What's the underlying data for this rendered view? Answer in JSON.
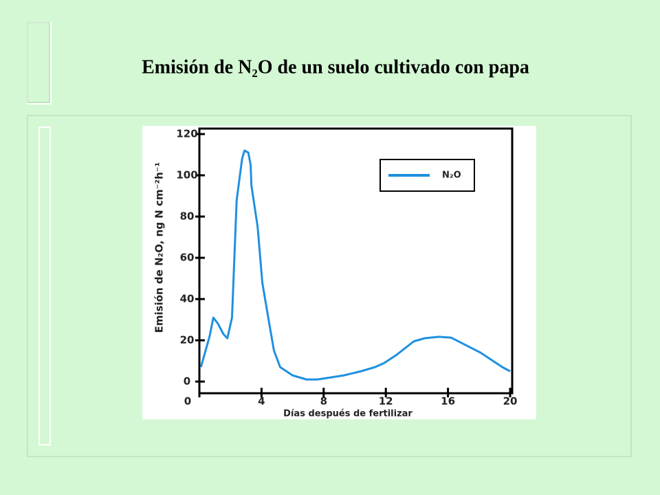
{
  "chart_data": {
    "type": "line",
    "title": "Emisión de N₂O de un suelo cultivado con papa",
    "xlabel": "Días después de fertilizar",
    "ylabel": "Emisión de N₂O, ng N cm⁻²h⁻¹",
    "x": [
      0.1,
      0.66,
      0.9,
      1.2,
      1.55,
      1.8,
      2.1,
      2.4,
      2.75,
      2.9,
      3.15,
      3.3,
      3.35,
      3.75,
      4.05,
      4.5,
      4.8,
      5.2,
      6.0,
      6.9,
      7.6,
      9.3,
      10.4,
      11.3,
      11.9,
      12.7,
      13.8,
      14.5,
      15.4,
      16.2,
      18.1,
      19.5,
      20
    ],
    "series": [
      {
        "name": "N₂O",
        "color": "#1e90e0",
        "values": [
          7,
          22,
          31,
          28,
          23,
          21,
          31,
          88,
          108,
          112,
          111,
          105,
          95,
          75,
          48,
          28,
          15,
          7,
          3,
          1,
          1,
          3,
          5,
          7,
          9,
          13,
          19.5,
          21,
          21.7,
          21.3,
          14,
          7,
          5
        ]
      }
    ],
    "xlim": [
      0,
      20
    ],
    "xticks": [
      0,
      4,
      8,
      12,
      16,
      20
    ],
    "ylim": [
      0,
      120
    ],
    "yticks": [
      0,
      20,
      40,
      60,
      80,
      100,
      120
    ],
    "legend": "upper right"
  }
}
